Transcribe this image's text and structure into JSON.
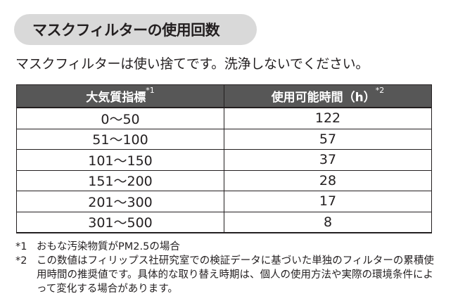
{
  "heading": "マスクフィルターの使用回数",
  "intro": "マスクフィルターは使い捨てです。洗浄しないでください。",
  "table": {
    "headers": [
      {
        "label": "大気質指標",
        "note": "*1"
      },
      {
        "label": "使用可能時間（h）",
        "note": "*2"
      }
    ],
    "rows": [
      {
        "range": "0～50",
        "hours": "122"
      },
      {
        "range": "51～100",
        "hours": "57"
      },
      {
        "range": "101～150",
        "hours": "37"
      },
      {
        "range": "151～200",
        "hours": "28"
      },
      {
        "range": "201～300",
        "hours": "17"
      },
      {
        "range": "301～500",
        "hours": "8"
      }
    ]
  },
  "footnotes": [
    {
      "mark": "*1",
      "text": "おもな汚染物質がPM2.5の場合"
    },
    {
      "mark": "*2",
      "text": "この数値はフィリップス社研究室での検証データに基づいた単独のフィルターの累積使用時間の推奨値です。具体的な取り替え時期は、個人の使用方法や実際の環境条件によって変化する場合があります。"
    }
  ]
}
